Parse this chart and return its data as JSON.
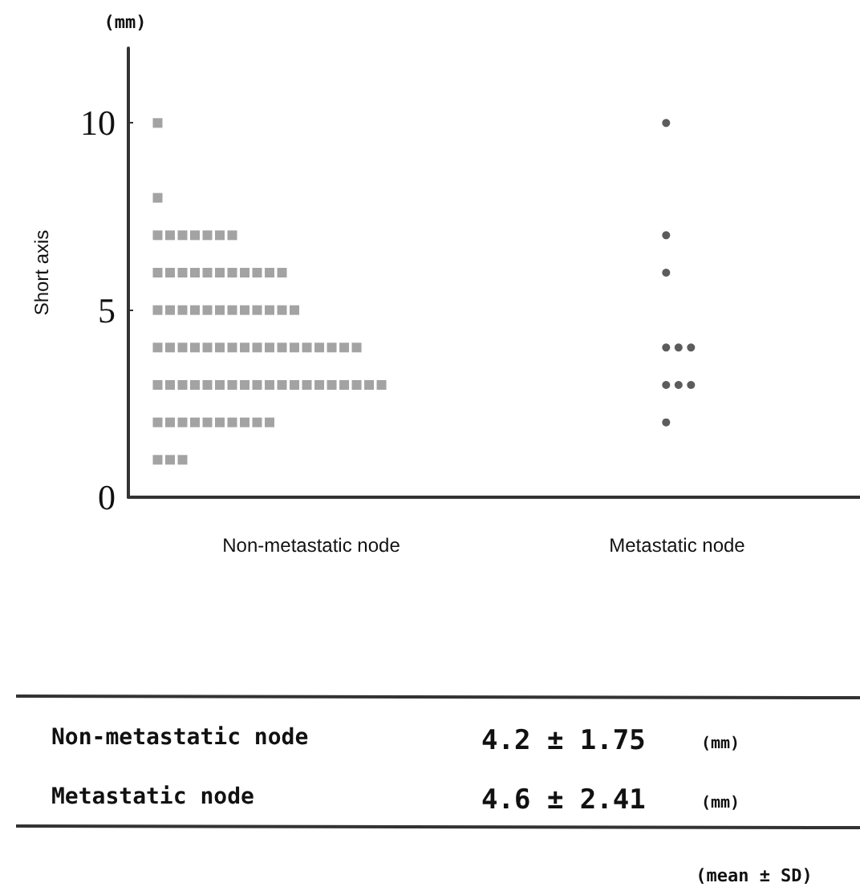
{
  "chart_data": {
    "type": "scatter",
    "ylabel": "Short axis",
    "categories": [
      "Non-metastatic node",
      "Metastatic node"
    ],
    "ylim": [
      0,
      12
    ],
    "yticks": [
      0,
      5,
      10
    ],
    "grid": false,
    "series": [
      {
        "color": "#8c8c8c",
        "marker": "square",
        "x": [
          "Non-metastatic node",
          "Non-metastatic node",
          "Non-metastatic node",
          "Non-metastatic node",
          "Non-metastatic node",
          "Non-metastatic node",
          "Non-metastatic node",
          "Non-metastatic node",
          "Non-metastatic node",
          "Non-metastatic node",
          "Non-metastatic node",
          "Non-metastatic node",
          "Non-metastatic node",
          "Non-metastatic node",
          "Non-metastatic node",
          "Non-metastatic node",
          "Non-metastatic node",
          "Non-metastatic node",
          "Non-metastatic node",
          "Non-metastatic node",
          "Non-metastatic node",
          "Non-metastatic node",
          "Non-metastatic node",
          "Non-metastatic node",
          "Non-metastatic node",
          "Non-metastatic node",
          "Non-metastatic node",
          "Non-metastatic node",
          "Non-metastatic node",
          "Non-metastatic node",
          "Non-metastatic node",
          "Non-metastatic node",
          "Non-metastatic node",
          "Non-metastatic node",
          "Non-metastatic node",
          "Non-metastatic node",
          "Non-metastatic node",
          "Non-metastatic node",
          "Non-metastatic node",
          "Non-metastatic node",
          "Non-metastatic node",
          "Non-metastatic node",
          "Non-metastatic node",
          "Non-metastatic node",
          "Non-metastatic node",
          "Non-metastatic node",
          "Non-metastatic node",
          "Non-metastatic node",
          "Non-metastatic node",
          "Non-metastatic node",
          "Non-metastatic node",
          "Non-metastatic node",
          "Non-metastatic node",
          "Non-metastatic node",
          "Non-metastatic node",
          "Non-metastatic node",
          "Non-metastatic node",
          "Non-metastatic node",
          "Non-metastatic node",
          "Non-metastatic node",
          "Non-metastatic node",
          "Non-metastatic node",
          "Non-metastatic node",
          "Non-metastatic node",
          "Non-metastatic node",
          "Non-metastatic node",
          "Non-metastatic node",
          "Non-metastatic node",
          "Non-metastatic node",
          "Non-metastatic node",
          "Non-metastatic node",
          "Non-metastatic node",
          "Non-metastatic node",
          "Non-metastatic node",
          "Non-metastatic node",
          "Non-metastatic node",
          "Non-metastatic node",
          "Non-metastatic node",
          "Non-metastatic node",
          "Non-metastatic node",
          "Non-metastatic node"
        ],
        "values": [
          10,
          8,
          7,
          7,
          7,
          7,
          7,
          7,
          7,
          6,
          6,
          6,
          6,
          6,
          6,
          6,
          6,
          6,
          6,
          6,
          5,
          5,
          5,
          5,
          5,
          5,
          5,
          5,
          5,
          5,
          5,
          5,
          4,
          4,
          4,
          4,
          4,
          4,
          4,
          4,
          4,
          4,
          4,
          4,
          4,
          4,
          4,
          4,
          4,
          3,
          3,
          3,
          3,
          3,
          3,
          3,
          3,
          3,
          3,
          3,
          3,
          3,
          3,
          3,
          3,
          3,
          3,
          3,
          2,
          2,
          2,
          2,
          2,
          2,
          2,
          2,
          2,
          2,
          1,
          1,
          1
        ]
      },
      {
        "color": "#333333",
        "marker": "circle",
        "x": [
          "Metastatic node",
          "Metastatic node",
          "Metastatic node",
          "Metastatic node",
          "Metastatic node",
          "Metastatic node",
          "Metastatic node",
          "Metastatic node",
          "Metastatic node",
          "Metastatic node"
        ],
        "values": [
          10,
          7,
          6,
          4,
          4,
          4,
          3,
          3,
          3,
          2
        ]
      }
    ],
    "annotations": [
      "(mm)",
      "Non-metastatic node",
      "4.2 ± 1.75",
      "(mm)",
      "Metastatic node",
      "4.6 ± 2.41",
      "(mm)",
      "(mean ± SD)"
    ]
  }
}
